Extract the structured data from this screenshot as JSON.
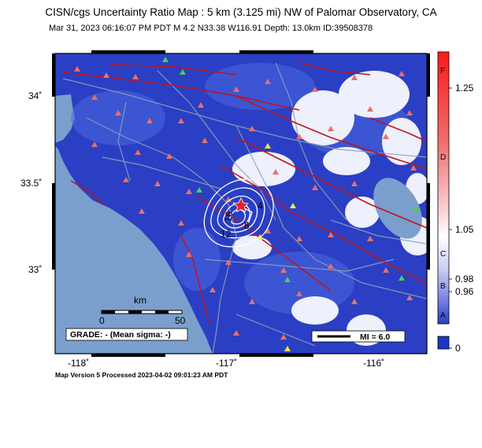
{
  "title": "CISN/cgs Uncertainty Ratio Map : 5 km (3.125 mi) NW of Palomar Observatory, CA",
  "subtitle": "Mar 31, 2023 06:16:07 PM PDT   M 4.2   N33.38 W116.91   Depth: 13.0km   ID:39508378",
  "footer": "Map Version 5 Processed 2023-04-02 09:01:23 AM PDT",
  "axes": {
    "y_ticks": [
      "34˚",
      "33.5˚",
      "33˚"
    ],
    "x_ticks": [
      "-118˚",
      "-117˚",
      "-116˚"
    ]
  },
  "scale_bar": {
    "unit": "km",
    "min": "0",
    "max": "50"
  },
  "grade_box": "GRADE: - (Mean sigma: -)",
  "mi_legend": "MI = 6.0",
  "contour_labels": [
    "4",
    "8",
    "16",
    "12"
  ],
  "colorbar": {
    "letters": [
      "F",
      "D",
      "C",
      "B",
      "A"
    ],
    "values": [
      "1.25",
      "1.05",
      "0.98",
      "0.96",
      "0"
    ]
  },
  "colors": {
    "ocean": "#7a9fcc",
    "land_blue": "#2a3fc4",
    "fault": "#c0141c",
    "station": "#e7706a",
    "road": "#8ea0b8"
  }
}
